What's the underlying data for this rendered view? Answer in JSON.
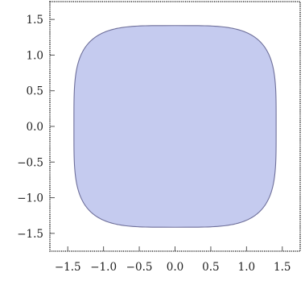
{
  "chart_data": {
    "type": "area",
    "title": "",
    "xlabel": "",
    "ylabel": "",
    "xlim": [
      -1.75,
      1.75
    ],
    "ylim": [
      -1.75,
      1.75
    ],
    "x_ticks": [
      -1.5,
      -1.0,
      -0.5,
      0.0,
      0.5,
      1.0,
      1.5
    ],
    "y_ticks": [
      -1.5,
      -1.0,
      -0.5,
      0.0,
      0.5,
      1.0,
      1.5
    ],
    "x_tick_labels": [
      "−1.5",
      "−1.0",
      "−0.5",
      "0.0",
      "0.5",
      "1.0",
      "1.5"
    ],
    "y_tick_labels": [
      "−1.5",
      "−1.0",
      "−0.5",
      "0.0",
      "0.5",
      "1.0",
      "1.5"
    ],
    "grid": false,
    "frame": "dashed",
    "region": {
      "shape": "superellipse",
      "equation": "x^4 + y^4 <= 4",
      "exponent": 4,
      "half_width": 1.414,
      "half_height": 1.414
    },
    "colors": {
      "fill": "#c5cbef",
      "edge": "#6e6f9a",
      "frame": "#333333"
    }
  }
}
